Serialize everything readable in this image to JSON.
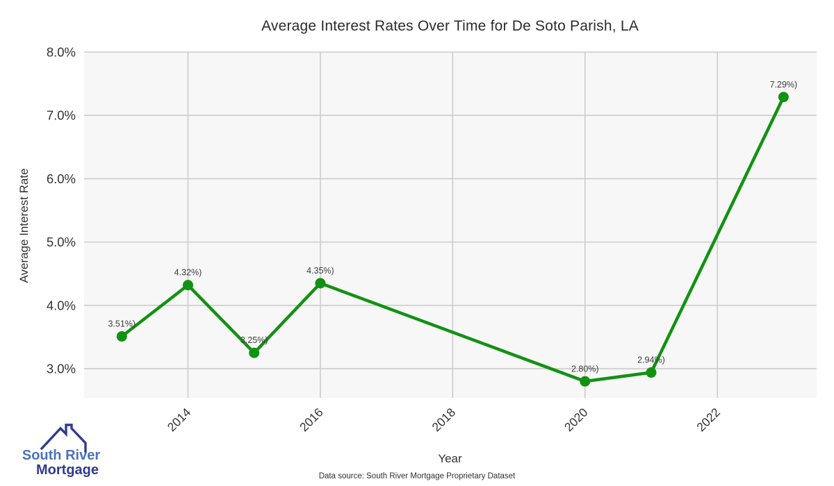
{
  "header": {
    "title": "Average Interest Rates Over Time for De Soto Parish, LA"
  },
  "footer": {
    "caption": "Data source: South River Mortgage Proprietary Dataset"
  },
  "logo": {
    "line1": "South River",
    "line2": "Mortgage",
    "line1_color": "#4a72bd",
    "line2_color": "#2f3a8f",
    "house_color": "#2f3a8f"
  },
  "chart_data": {
    "type": "line",
    "title": "Average Interest Rates Over Time for De Soto Parish, LA",
    "xlabel": "Year",
    "ylabel": "Average Interest Rate",
    "x": [
      2013,
      2014,
      2015,
      2016,
      2020,
      2021,
      2023
    ],
    "series": [
      {
        "name": "Average Interest Rate",
        "values": [
          3.51,
          4.32,
          3.25,
          4.35,
          2.8,
          2.94,
          7.29
        ],
        "point_labels": [
          "3.51%)",
          "4.32%)",
          "3.25%)",
          "4.35%)",
          "2.80%)",
          "2.94%)",
          "7.29%)"
        ]
      }
    ],
    "xticks": [
      2014,
      2016,
      2018,
      2020,
      2022
    ],
    "xtick_labels": [
      "2014",
      "2016",
      "2018",
      "2020",
      "2022"
    ],
    "xtick_rotation": 45,
    "yticks": [
      3,
      4,
      5,
      6,
      7,
      8
    ],
    "ytick_labels": [
      "3.0%",
      "4.0%",
      "5.0%",
      "6.0%",
      "7.0%",
      "8.0%"
    ],
    "xlim": [
      2012.43,
      2023.5
    ],
    "ylim": [
      2.54,
      8.0
    ],
    "grid": true,
    "legend": false,
    "line_color": "#129212",
    "marker_color": "#129212",
    "plot_bg": "#f7f7f7",
    "grid_color": "#cccccc",
    "tick_color": "#333333",
    "label_color": "#3c3c3c"
  }
}
